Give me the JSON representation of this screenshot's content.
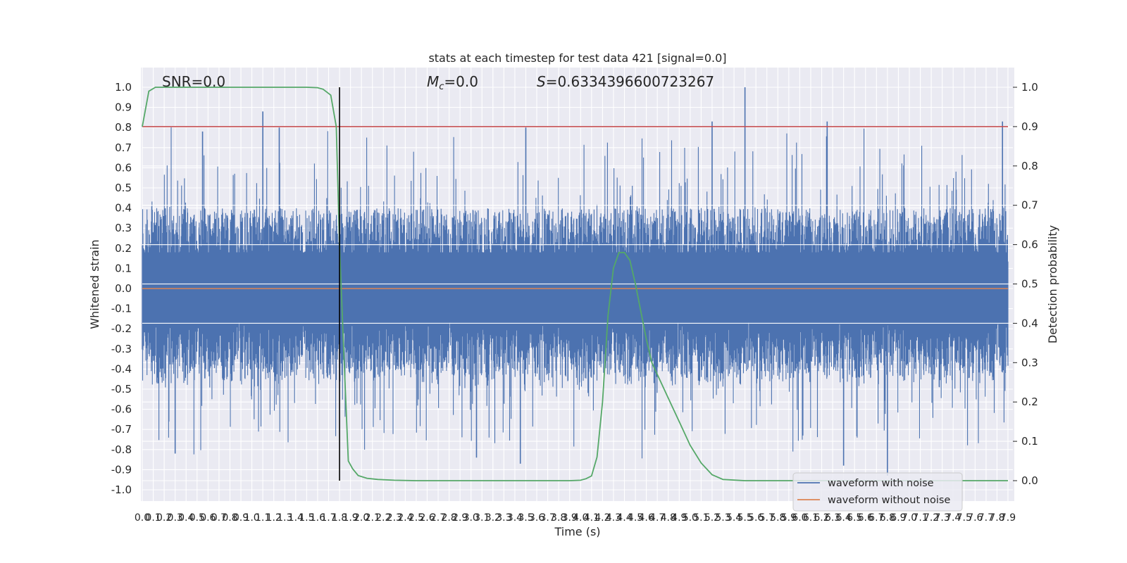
{
  "chart_data": {
    "type": "line",
    "title": "stats at each timestep for test data 421 [signal=0.0]",
    "xlabel": "Time (s)",
    "ylabel": "Whitened strain",
    "y2label": "Detection probability",
    "xlim": [
      0.0,
      7.9
    ],
    "ylim": [
      -1.0,
      1.0
    ],
    "y2lim": [
      0.0,
      1.0
    ],
    "grid": true,
    "legend_placement": "lower-right",
    "annotations": {
      "snr": "SNR=0.0",
      "mc_symbol": "M",
      "mc_sub": "c",
      "mc_value": "=0.0",
      "s_symbol": "S",
      "s_value": "=0.6334396600723267"
    },
    "x_ticks": [
      "0.0",
      "0.1",
      "0.2",
      "0.3",
      "0.4",
      "0.5",
      "0.6",
      "0.7",
      "0.8",
      "0.9",
      "1.0",
      "1.1",
      "1.2",
      "1.3",
      "1.4",
      "1.5",
      "1.6",
      "1.7",
      "1.8",
      "1.9",
      "2.0",
      "2.1",
      "2.2",
      "2.3",
      "2.4",
      "2.5",
      "2.6",
      "2.7",
      "2.8",
      "2.9",
      "3.0",
      "3.1",
      "3.2",
      "3.3",
      "3.4",
      "3.5",
      "3.6",
      "3.7",
      "3.8",
      "3.9",
      "4.0",
      "4.1",
      "4.2",
      "4.3",
      "4.4",
      "4.5",
      "4.6",
      "4.7",
      "4.8",
      "4.9",
      "5.0",
      "5.1",
      "5.2",
      "5.3",
      "5.4",
      "5.5",
      "5.6",
      "5.7",
      "5.8",
      "5.9",
      "6.0",
      "6.1",
      "6.2",
      "6.3",
      "6.4",
      "6.5",
      "6.6",
      "6.7",
      "6.8",
      "6.9",
      "7.0",
      "7.1",
      "7.2",
      "7.3",
      "7.4",
      "7.5",
      "7.6",
      "7.7",
      "7.8",
      "7.9"
    ],
    "y_ticks": [
      "1.0",
      "0.9",
      "0.8",
      "0.7",
      "0.6",
      "0.5",
      "0.4",
      "0.3",
      "0.2",
      "0.1",
      "0.0",
      "-0.1",
      "-0.2",
      "-0.3",
      "-0.4",
      "-0.5",
      "-0.6",
      "-0.7",
      "-0.8",
      "-0.9",
      "-1.0"
    ],
    "y2_ticks": [
      "1.0",
      "0.9",
      "0.8",
      "0.7",
      "0.6",
      "0.5",
      "0.4",
      "0.3",
      "0.2",
      "0.1",
      "0.0"
    ],
    "series": [
      {
        "name": "waveform with noise",
        "color": "#4c72b0",
        "description": "dense noisy strain, amplitude approx -0.95..1.0"
      },
      {
        "name": "waveform without noise",
        "color": "#dd8452",
        "values_constant": 0.0
      }
    ],
    "detection_probability": {
      "color": "#55a868",
      "x": [
        0.0,
        0.06,
        0.12,
        0.3,
        1.0,
        1.5,
        1.6,
        1.65,
        1.72,
        1.77,
        1.8,
        1.84,
        1.88,
        1.92,
        1.97,
        2.05,
        2.15,
        2.3,
        2.5,
        3.0,
        3.5,
        3.9,
        4.0,
        4.05,
        4.1,
        4.15,
        4.2,
        4.25,
        4.3,
        4.35,
        4.4,
        4.45,
        4.5,
        4.55,
        4.6,
        4.65,
        4.7,
        4.8,
        4.9,
        5.0,
        5.1,
        5.2,
        5.3,
        5.5,
        6.0,
        7.0,
        7.9
      ],
      "y": [
        0.9,
        0.99,
        1.0,
        1.0,
        1.0,
        1.0,
        0.999,
        0.995,
        0.98,
        0.9,
        0.6,
        0.32,
        0.05,
        0.03,
        0.013,
        0.006,
        0.003,
        0.001,
        0.0,
        0.0,
        0.0,
        0.0,
        0.001,
        0.005,
        0.012,
        0.06,
        0.2,
        0.42,
        0.54,
        0.58,
        0.58,
        0.56,
        0.5,
        0.43,
        0.36,
        0.3,
        0.27,
        0.21,
        0.15,
        0.09,
        0.045,
        0.015,
        0.003,
        0.0,
        0.0,
        0.0,
        0.0
      ]
    },
    "threshold": {
      "value": 0.9,
      "axis": "right",
      "color": "#c44e52"
    },
    "vertical_marker": {
      "x": 1.8,
      "color": "#000000"
    }
  }
}
